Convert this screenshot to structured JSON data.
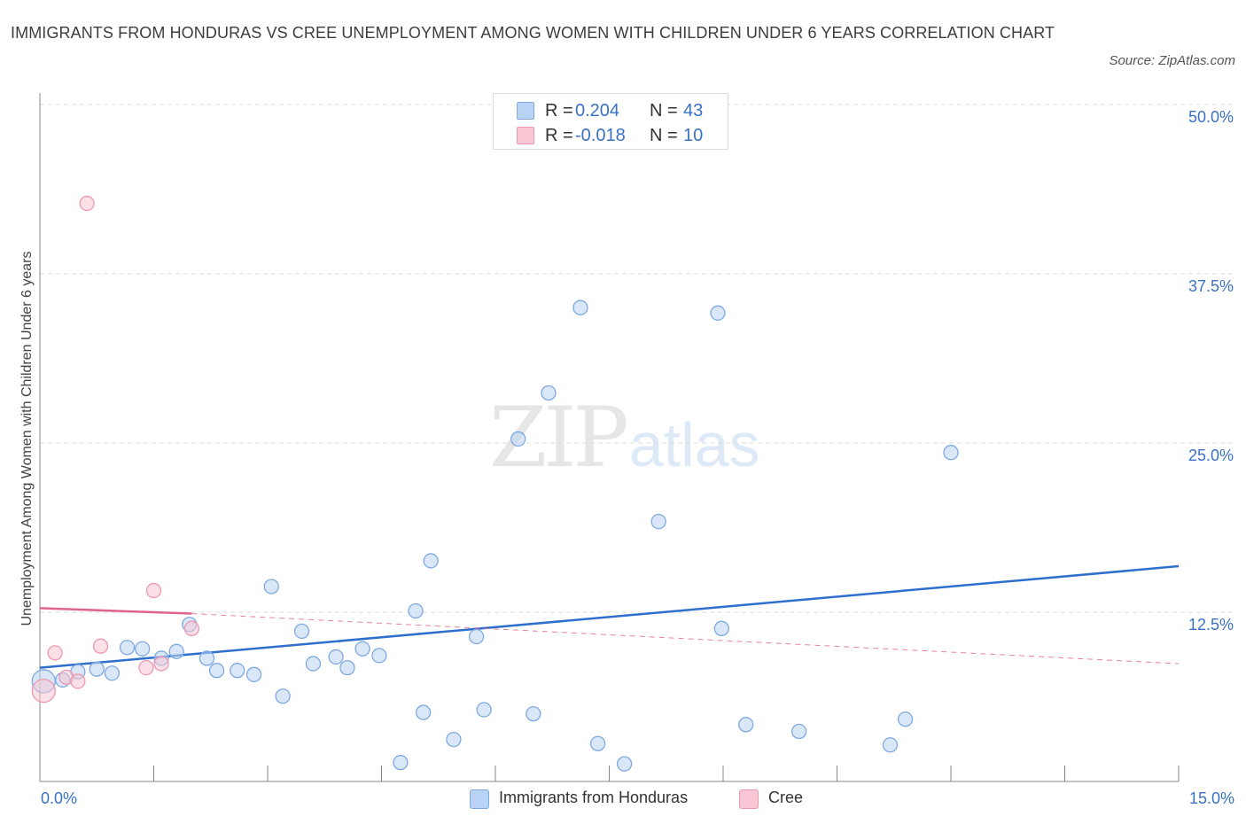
{
  "title": "IMMIGRANTS FROM HONDURAS VS CREE UNEMPLOYMENT AMONG WOMEN WITH CHILDREN UNDER 6 YEARS CORRELATION CHART",
  "source": "Source: ZipAtlas.com",
  "watermark": {
    "zip": "ZIP",
    "atlas": "atlas"
  },
  "stats": [
    {
      "r_label": "R =",
      "r_value": "0.204",
      "n_label": "N =",
      "n_value": "43"
    },
    {
      "r_label": "R =",
      "r_value": "-0.018",
      "n_label": "N =",
      "n_value": "10"
    }
  ],
  "legend": [
    {
      "label": "Immigrants from Honduras"
    },
    {
      "label": "Cree"
    }
  ],
  "colors": {
    "honduras_fill": "#b9d3f4",
    "honduras_stroke": "#7fa9e0",
    "honduras_line": "#2f6fcc",
    "cree_fill": "#f8c6d4",
    "cree_stroke": "#ec98b2",
    "cree_line": "#e0648a",
    "tick_text": "#3a72c4",
    "grid": "#dddddd"
  },
  "chart_data": {
    "type": "scatter",
    "title": "IMMIGRANTS FROM HONDURAS VS CREE UNEMPLOYMENT AMONG WOMEN WITH CHILDREN UNDER 6 YEARS CORRELATION CHART",
    "xlabel": "",
    "ylabel": "Unemployment Among Women with Children Under 6 years",
    "xlim": [
      0,
      15
    ],
    "ylim": [
      0,
      50
    ],
    "x_tick_labels": [
      "0.0%",
      "15.0%"
    ],
    "y_ticks": [
      12.5,
      25.0,
      37.5,
      50.0
    ],
    "y_tick_labels": [
      "12.5%",
      "25.0%",
      "37.5%",
      "50.0%"
    ],
    "grid": true,
    "series": [
      {
        "name": "Immigrants from Honduras",
        "r": 0.204,
        "n": 43,
        "trend": {
          "x": [
            0,
            15
          ],
          "y": [
            8.4,
            15.9
          ]
        },
        "points": [
          {
            "x": 0.05,
            "y": 7.4,
            "big": true
          },
          {
            "x": 0.3,
            "y": 7.5
          },
          {
            "x": 0.5,
            "y": 8.1
          },
          {
            "x": 0.75,
            "y": 8.3
          },
          {
            "x": 0.95,
            "y": 8.0
          },
          {
            "x": 1.15,
            "y": 9.9
          },
          {
            "x": 1.35,
            "y": 9.8
          },
          {
            "x": 1.6,
            "y": 9.1
          },
          {
            "x": 1.8,
            "y": 9.6
          },
          {
            "x": 1.97,
            "y": 11.6
          },
          {
            "x": 2.2,
            "y": 9.1
          },
          {
            "x": 2.33,
            "y": 8.2
          },
          {
            "x": 2.6,
            "y": 8.2
          },
          {
            "x": 2.82,
            "y": 7.9
          },
          {
            "x": 3.05,
            "y": 14.4
          },
          {
            "x": 3.2,
            "y": 6.3
          },
          {
            "x": 3.45,
            "y": 11.1
          },
          {
            "x": 3.6,
            "y": 8.7
          },
          {
            "x": 3.9,
            "y": 9.2
          },
          {
            "x": 4.05,
            "y": 8.4
          },
          {
            "x": 4.25,
            "y": 9.8
          },
          {
            "x": 4.47,
            "y": 9.3
          },
          {
            "x": 4.75,
            "y": 1.4
          },
          {
            "x": 4.95,
            "y": 12.6
          },
          {
            "x": 5.05,
            "y": 5.1
          },
          {
            "x": 5.15,
            "y": 16.3
          },
          {
            "x": 5.45,
            "y": 3.1
          },
          {
            "x": 5.75,
            "y": 10.7
          },
          {
            "x": 5.85,
            "y": 5.3
          },
          {
            "x": 6.3,
            "y": 25.3
          },
          {
            "x": 6.5,
            "y": 5.0
          },
          {
            "x": 6.7,
            "y": 28.7
          },
          {
            "x": 7.12,
            "y": 35.0
          },
          {
            "x": 7.35,
            "y": 2.8
          },
          {
            "x": 7.7,
            "y": 1.3
          },
          {
            "x": 8.15,
            "y": 19.2
          },
          {
            "x": 8.93,
            "y": 34.6
          },
          {
            "x": 8.98,
            "y": 11.3
          },
          {
            "x": 9.3,
            "y": 4.2
          },
          {
            "x": 10.0,
            "y": 3.7
          },
          {
            "x": 11.2,
            "y": 2.7
          },
          {
            "x": 11.4,
            "y": 4.6
          },
          {
            "x": 12.0,
            "y": 24.3
          }
        ]
      },
      {
        "name": "Cree",
        "r": -0.018,
        "n": 10,
        "trend": {
          "x": [
            0,
            2.0
          ],
          "y": [
            12.8,
            12.4
          ]
        },
        "trend_extension": {
          "x": [
            2.0,
            15
          ],
          "y": [
            12.4,
            8.7
          ]
        },
        "points": [
          {
            "x": 0.05,
            "y": 6.7,
            "big": true
          },
          {
            "x": 0.2,
            "y": 9.5
          },
          {
            "x": 0.35,
            "y": 7.7
          },
          {
            "x": 0.5,
            "y": 7.4
          },
          {
            "x": 0.62,
            "y": 42.7
          },
          {
            "x": 0.8,
            "y": 10.0
          },
          {
            "x": 1.4,
            "y": 8.4
          },
          {
            "x": 1.5,
            "y": 14.1
          },
          {
            "x": 1.6,
            "y": 8.7
          },
          {
            "x": 2.0,
            "y": 11.3
          }
        ]
      }
    ]
  }
}
